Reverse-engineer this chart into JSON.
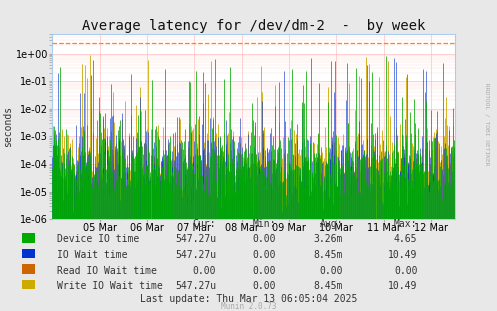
{
  "title": "Average latency for /dev/dm-2  -  by week",
  "ylabel": "seconds",
  "background_color": "#e8e8e8",
  "plot_bg_color": "#ffffff",
  "grid_color": "#ffb3b3",
  "dashed_line_color": "#ff8800",
  "dashed_line_y": 2.5,
  "colors": {
    "device_io": "#00aa00",
    "io_wait": "#0033cc",
    "read_io_wait": "#cc6600",
    "write_io_wait": "#ccaa00"
  },
  "legend": [
    {
      "label": "Device IO time",
      "color": "#00aa00",
      "cur": "547.27u",
      "min": "0.00",
      "avg": "3.26m",
      "max": "4.65"
    },
    {
      "label": "IO Wait time",
      "color": "#0033cc",
      "cur": "547.27u",
      "min": "0.00",
      "avg": "8.45m",
      "max": "10.49"
    },
    {
      "label": "Read IO Wait time",
      "color": "#cc6600",
      "cur": "0.00",
      "min": "0.00",
      "avg": "0.00",
      "max": "0.00"
    },
    {
      "label": "Write IO Wait time",
      "color": "#ccaa00",
      "cur": "547.27u",
      "min": "0.00",
      "avg": "8.45m",
      "max": "10.49"
    }
  ],
  "xtick_labels": [
    "05 Mar",
    "06 Mar",
    "07 Mar",
    "08 Mar",
    "09 Mar",
    "10 Mar",
    "11 Mar",
    "12 Mar"
  ],
  "xtick_positions": [
    1,
    2,
    3,
    4,
    5,
    6,
    7,
    8
  ],
  "last_update": "Last update: Thu Mar 13 06:05:04 2025",
  "munin_version": "Munin 2.0.73",
  "rrdtool_label": "RRDTOOL / TOBI OETIKER",
  "title_fontsize": 10,
  "axis_fontsize": 7,
  "legend_fontsize": 7
}
